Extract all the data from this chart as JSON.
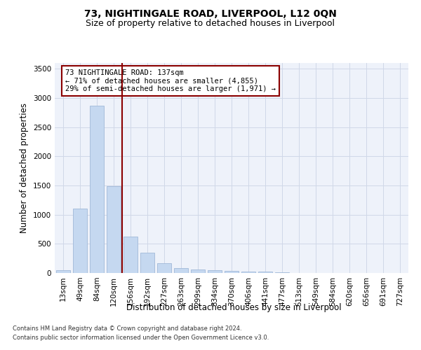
{
  "title": "73, NIGHTINGALE ROAD, LIVERPOOL, L12 0QN",
  "subtitle": "Size of property relative to detached houses in Liverpool",
  "xlabel": "Distribution of detached houses by size in Liverpool",
  "ylabel": "Number of detached properties",
  "categories": [
    "13sqm",
    "49sqm",
    "84sqm",
    "120sqm",
    "156sqm",
    "192sqm",
    "227sqm",
    "263sqm",
    "299sqm",
    "334sqm",
    "370sqm",
    "406sqm",
    "441sqm",
    "477sqm",
    "513sqm",
    "549sqm",
    "584sqm",
    "620sqm",
    "656sqm",
    "691sqm",
    "727sqm"
  ],
  "values": [
    50,
    1100,
    2870,
    1490,
    630,
    345,
    170,
    90,
    55,
    45,
    35,
    28,
    20,
    10,
    0,
    0,
    0,
    0,
    0,
    0,
    0
  ],
  "bar_color": "#c5d8f0",
  "bar_edge_color": "#a0b8d8",
  "vline_x": 3.5,
  "vline_color": "#8b0000",
  "annotation_line1": "73 NIGHTINGALE ROAD: 137sqm",
  "annotation_line2": "← 71% of detached houses are smaller (4,855)",
  "annotation_line3": "29% of semi-detached houses are larger (1,971) →",
  "annotation_box_color": "#8b0000",
  "ylim": [
    0,
    3600
  ],
  "yticks": [
    0,
    500,
    1000,
    1500,
    2000,
    2500,
    3000,
    3500
  ],
  "grid_color": "#d0d8e8",
  "background_color": "#eef2fa",
  "footer_line1": "Contains HM Land Registry data © Crown copyright and database right 2024.",
  "footer_line2": "Contains public sector information licensed under the Open Government Licence v3.0.",
  "title_fontsize": 10,
  "subtitle_fontsize": 9,
  "axis_label_fontsize": 8.5,
  "tick_fontsize": 7.5,
  "annotation_fontsize": 7.5
}
